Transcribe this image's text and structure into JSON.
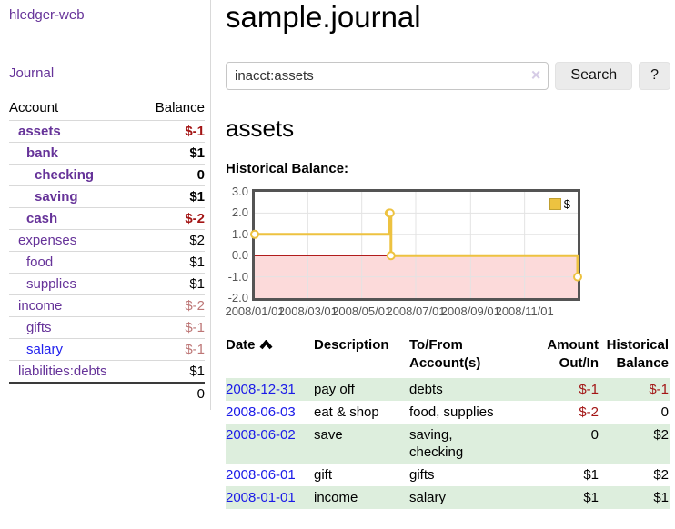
{
  "colors": {
    "accent_purple": "#663399",
    "link_blue": "#1a1ae8",
    "negative_strong": "#a31515",
    "negative_faded": "#bd7676",
    "row_stripe_green": "#ddeedd",
    "series_gold": "#edc240",
    "shade_pink": "#fcdada",
    "zero_line_red": "#a80000",
    "chart_border": "#545454",
    "gridline": "#e3e3e3"
  },
  "sidebar": {
    "brand": "hledger-web",
    "journal_link": "Journal",
    "header": {
      "account": "Account",
      "balance": "Balance"
    },
    "accounts": [
      {
        "name": "assets",
        "depth": 1,
        "balance": "$-1",
        "bold": true
      },
      {
        "name": "bank",
        "depth": 2,
        "balance": "$1",
        "bold": true
      },
      {
        "name": "checking",
        "depth": 3,
        "balance": "0",
        "bold": true
      },
      {
        "name": "saving",
        "depth": 3,
        "balance": "$1",
        "bold": true
      },
      {
        "name": "cash",
        "depth": 2,
        "balance": "$-2",
        "bold": true
      },
      {
        "name": "expenses",
        "depth": 1,
        "balance": "$2"
      },
      {
        "name": "food",
        "depth": 2,
        "balance": "$1"
      },
      {
        "name": "supplies",
        "depth": 2,
        "balance": "$1"
      },
      {
        "name": "income",
        "depth": 1,
        "balance": "$-2"
      },
      {
        "name": "gifts",
        "depth": 2,
        "balance": "$-1"
      },
      {
        "name": "salary",
        "depth": 2,
        "balance": "$-1",
        "unvisited": true
      },
      {
        "name": "liabilities:debts",
        "depth": 1,
        "balance": "$1"
      }
    ],
    "total": "0"
  },
  "main": {
    "title": "sample.journal",
    "search": {
      "value": "inacct:assets",
      "clear_icon": "×",
      "search_button": "Search",
      "help_button": "?"
    },
    "account_heading": "assets",
    "chart_heading": "Historical Balance:"
  },
  "chart_data": {
    "type": "line",
    "line_style": "step",
    "title": "Historical Balance",
    "series": [
      {
        "name": "$",
        "color": "#edc240",
        "points": [
          [
            "2008-01-01",
            1
          ],
          [
            "2008-06-01",
            2
          ],
          [
            "2008-06-02",
            2
          ],
          [
            "2008-06-03",
            0
          ],
          [
            "2008-12-31",
            -1
          ]
        ]
      }
    ],
    "xrange": [
      "2008-01-01",
      "2008-12-31"
    ],
    "ylim": [
      -2,
      3
    ],
    "ytick_values": [
      3,
      2,
      1,
      0,
      -1,
      -2
    ],
    "ytick_labels": [
      "3.0",
      "2.0",
      "1.0",
      "0.0",
      "-1.0",
      "-2.0"
    ],
    "xticks": [
      {
        "date": "2008-01-01",
        "label": "2008/01/01"
      },
      {
        "date": "2008-03-01",
        "label": "2008/03/01"
      },
      {
        "date": "2008-05-01",
        "label": "2008/05/01"
      },
      {
        "date": "2008-07-01",
        "label": "2008/07/01"
      },
      {
        "date": "2008-09-01",
        "label": "2008/09/01"
      },
      {
        "date": "2008-11-01",
        "label": "2008/11/01"
      }
    ],
    "legend": {
      "label": "$",
      "position": "top-right"
    },
    "grid": true,
    "negative_region_shaded": true
  },
  "register": {
    "columns": [
      {
        "lines": [
          "Date"
        ],
        "sortable": true,
        "align": "left"
      },
      {
        "lines": [
          "Description"
        ],
        "align": "left"
      },
      {
        "lines": [
          "To/From",
          "Account(s)"
        ],
        "align": "left"
      },
      {
        "lines": [
          "Amount",
          "Out/In"
        ],
        "align": "right"
      },
      {
        "lines": [
          "Historical",
          "Balance"
        ],
        "align": "right"
      }
    ],
    "rows": [
      {
        "date": "2008-12-31",
        "description": "pay off",
        "accounts": "debts",
        "amount": "$-1",
        "balance": "$-1"
      },
      {
        "date": "2008-06-03",
        "description": "eat & shop",
        "accounts": "food, supplies",
        "amount": "$-2",
        "balance": "0"
      },
      {
        "date": "2008-06-02",
        "description": "save",
        "accounts": "saving, checking",
        "amount": "0",
        "balance": "$2"
      },
      {
        "date": "2008-06-01",
        "description": "gift",
        "accounts": "gifts",
        "amount": "$1",
        "balance": "$2"
      },
      {
        "date": "2008-01-01",
        "description": "income",
        "accounts": "salary",
        "amount": "$1",
        "balance": "$1"
      }
    ]
  }
}
